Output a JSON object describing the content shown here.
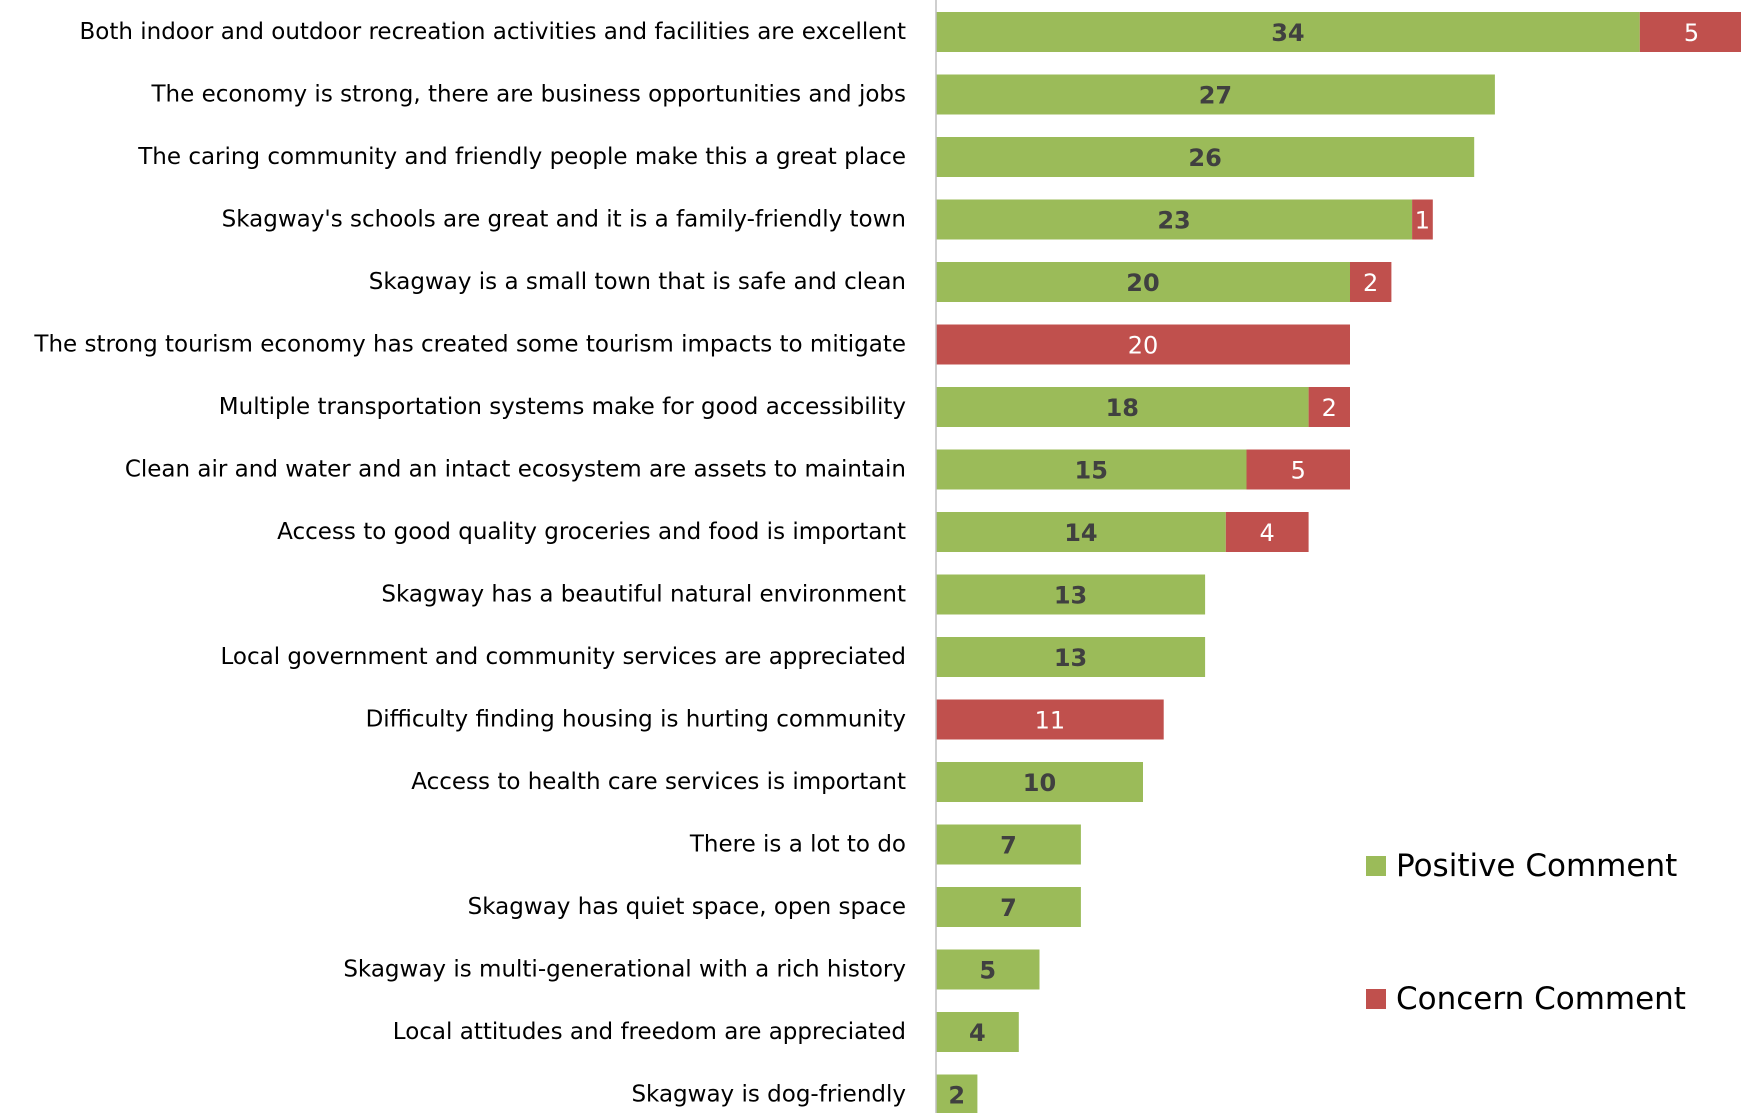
{
  "chart_data": {
    "type": "bar",
    "orientation": "horizontal",
    "stacked": true,
    "title": "",
    "xlabel": "",
    "ylabel": "",
    "xlim": [
      0,
      39
    ],
    "grid": false,
    "legend_position": "right",
    "categories": [
      "Both indoor and outdoor recreation activities and facilities are excellent",
      "The economy is strong, there are business opportunities and jobs",
      "The caring community and friendly people make this a great place",
      "Skagway's schools are great and it is a family-friendly town",
      "Skagway is a small town that is safe and clean",
      "The strong tourism economy has created some tourism impacts to mitigate",
      "Multiple transportation systems make for good accessibility",
      "Clean air and water and an intact ecosystem are assets to maintain",
      "Access to good quality groceries and food is important",
      "Skagway has a beautiful natural environment",
      "Local government and community services are appreciated",
      "Difficulty finding housing is hurting community",
      "Access to health care services is important",
      "There is a lot to do",
      "Skagway has quiet space, open space",
      "Skagway is multi-generational with a rich history",
      "Local attitudes and freedom are appreciated",
      "Skagway is dog-friendly"
    ],
    "series": [
      {
        "name": "Positive Comment",
        "color": "#9bbb59",
        "values": [
          34,
          27,
          26,
          23,
          20,
          0,
          18,
          15,
          14,
          13,
          13,
          0,
          10,
          7,
          7,
          5,
          4,
          2
        ]
      },
      {
        "name": "Concern Comment",
        "color": "#c0504d",
        "values": [
          5,
          0,
          0,
          1,
          2,
          20,
          2,
          5,
          4,
          0,
          0,
          11,
          0,
          0,
          0,
          0,
          0,
          0
        ]
      }
    ],
    "colors": {
      "axis": "#bfbfbf",
      "positive_label": "#404040",
      "concern_label": "#ffffff"
    }
  }
}
